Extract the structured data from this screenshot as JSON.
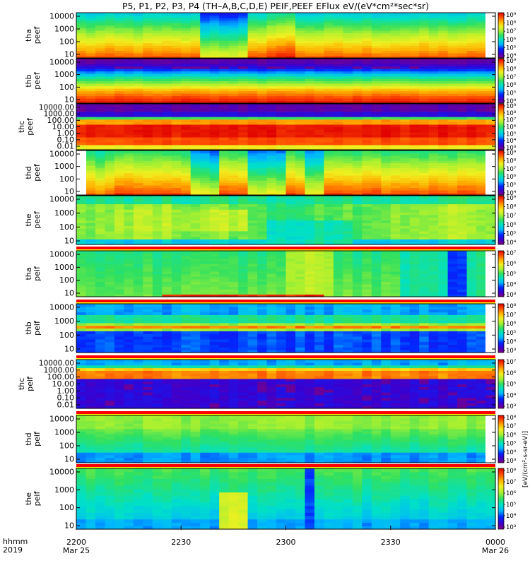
{
  "title": "P5, P1, P2, P3, P4 (TH–A,B,C,D,E) PEIF,PEEF EFlux eV/(eV*cm²*sec*sr)",
  "colorbar_units": "[eV/(cm²-s-sr-eV)]",
  "colorbar_palette": [
    "#800080",
    "#3a00d0",
    "#0028ff",
    "#00b4ff",
    "#00e0c8",
    "#30e060",
    "#a8f030",
    "#f0f020",
    "#ffb000",
    "#ff5000",
    "#e00000"
  ],
  "colors": {
    "separator_red": "#ff0000",
    "separator_yellow": "#ffff00",
    "frame": "#000000",
    "gap_white": "#ffffff"
  },
  "bottom_axis": {
    "row_labels": [
      "hhmm",
      "2019"
    ],
    "ticks": [
      {
        "label": "2200",
        "sub": "Mar 25"
      },
      {
        "label": "2230",
        "sub": ""
      },
      {
        "label": "2300",
        "sub": ""
      },
      {
        "label": "2330",
        "sub": ""
      },
      {
        "label": "0000",
        "sub": "Mar 26"
      }
    ]
  },
  "chart_data": {
    "type": "heatmap",
    "x_range_hhmm": [
      "2200 Mar 25",
      "0000 Mar 26"
    ],
    "yscale": "log",
    "panels": [
      {
        "label1": "tha",
        "label2": "peef",
        "yticks": [
          "10000",
          "1000",
          "100",
          "10"
        ],
        "ylim": [
          5,
          30000
        ],
        "cbar": [
          "10⁹",
          "10⁸",
          "10⁷",
          "10⁶",
          "10⁵",
          "10⁴"
        ],
        "style": "peef_a"
      },
      {
        "label1": "thb",
        "label2": "peef",
        "yticks": [
          "10000",
          "1000",
          "100",
          "10"
        ],
        "ylim": [
          5,
          30000
        ],
        "cbar": [
          "10⁹",
          "10⁸",
          "10⁷",
          "10⁶",
          "10⁵",
          "10⁴"
        ],
        "style": "peef_b"
      },
      {
        "label1": "thc",
        "label2": "peef",
        "yticks": [
          "10000.00",
          "1000.00",
          "100.00",
          "10.00",
          "1.00",
          "0.10",
          "0.01"
        ],
        "ylim": [
          0.005,
          30000
        ],
        "cbar": [
          "10⁹",
          "10⁸",
          "10⁷",
          "10⁶",
          "10⁵",
          "10⁴",
          "10³"
        ],
        "style": "peef_c"
      },
      {
        "label1": "thd",
        "label2": "peef",
        "yticks": [
          "10000",
          "1000",
          "100",
          "10"
        ],
        "ylim": [
          5,
          30000
        ],
        "cbar": [
          "10⁹",
          "10⁸",
          "10⁷",
          "10⁶",
          "10⁵",
          "10⁴"
        ],
        "style": "peef_d"
      },
      {
        "label1": "the",
        "label2": "peef",
        "yticks": [
          "10000",
          "1000",
          "100",
          "10"
        ],
        "ylim": [
          5,
          30000
        ],
        "cbar": [
          "10⁹",
          "10⁸",
          "10⁷",
          "10⁶",
          "10⁵",
          "10⁴"
        ],
        "style": "peef_e"
      },
      {
        "label1": "tha",
        "label2": "peif",
        "yticks": [
          "10000",
          "1000",
          "100",
          "10"
        ],
        "ylim": [
          5,
          30000
        ],
        "cbar": [
          "10⁷",
          "10⁶",
          "10⁵",
          "10⁴",
          "10³"
        ],
        "style": "peif_a"
      },
      {
        "label1": "thb",
        "label2": "peif",
        "yticks": [
          "10000",
          "1000",
          "100",
          "10"
        ],
        "ylim": [
          5,
          30000
        ],
        "cbar": [
          "10⁸",
          "10⁷",
          "10⁶",
          "10⁵",
          "10⁴",
          "10³"
        ],
        "style": "peif_b"
      },
      {
        "label1": "thc",
        "label2": "peif",
        "yticks": [
          "10000.00",
          "1000.00",
          "100.00",
          "10.00",
          "1.00",
          "0.10",
          "0.01"
        ],
        "ylim": [
          0.005,
          30000
        ],
        "cbar": [
          "10⁷",
          "10⁶",
          "10⁵",
          "10⁴",
          "10³"
        ],
        "style": "peif_c"
      },
      {
        "label1": "thd",
        "label2": "peif",
        "yticks": [
          "10000",
          "1000",
          "100",
          "10"
        ],
        "ylim": [
          5,
          30000
        ],
        "cbar": [
          "10⁸",
          "10⁷",
          "10⁶",
          "10⁵",
          "10⁴",
          "10³"
        ],
        "style": "peif_d"
      },
      {
        "label1": "the",
        "label2": "peif",
        "yticks": [
          "10000",
          "1000",
          "100",
          "10"
        ],
        "ylim": [
          5,
          30000
        ],
        "cbar": [
          "10⁸",
          "10⁷",
          "10⁶",
          "10⁵",
          "10⁴",
          "10³"
        ],
        "style": "peif_e"
      }
    ]
  }
}
